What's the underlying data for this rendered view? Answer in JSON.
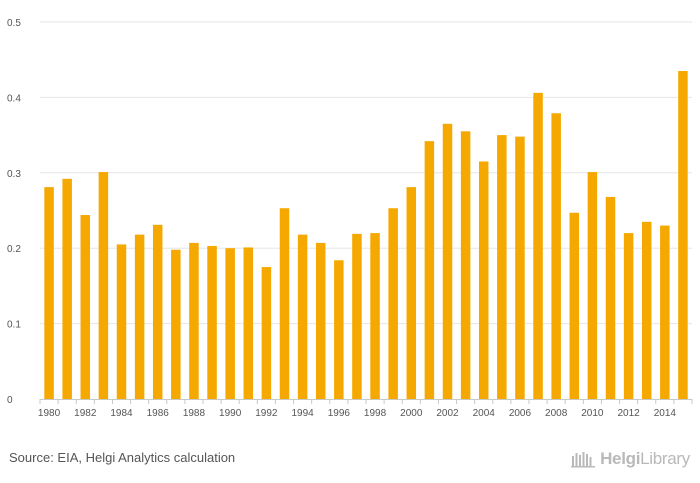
{
  "chart_data": {
    "type": "bar",
    "title": "",
    "xlabel": "",
    "ylabel": "",
    "ylim": [
      0,
      0.5
    ],
    "yticks": [
      0,
      0.1,
      0.2,
      0.3,
      0.4,
      0.5
    ],
    "ytick_labels": [
      "0",
      "0.1",
      "0.2",
      "0.3",
      "0.4",
      "0.5"
    ],
    "categories": [
      "1980",
      "1981",
      "1982",
      "1983",
      "1984",
      "1985",
      "1986",
      "1987",
      "1988",
      "1989",
      "1990",
      "1991",
      "1992",
      "1993",
      "1994",
      "1995",
      "1996",
      "1997",
      "1998",
      "1999",
      "2000",
      "2001",
      "2002",
      "2003",
      "2004",
      "2005",
      "2006",
      "2007",
      "2008",
      "2009",
      "2010",
      "2011",
      "2012",
      "2013",
      "2014",
      "2015"
    ],
    "xtick_labels": [
      "1980",
      "1982",
      "1984",
      "1986",
      "1988",
      "1990",
      "1992",
      "1994",
      "1996",
      "1998",
      "2000",
      "2002",
      "2004",
      "2006",
      "2008",
      "2010",
      "2012",
      "2014"
    ],
    "values": [
      0.281,
      0.292,
      0.244,
      0.301,
      0.205,
      0.218,
      0.231,
      0.198,
      0.207,
      0.203,
      0.2,
      0.201,
      0.175,
      0.253,
      0.218,
      0.207,
      0.184,
      0.219,
      0.22,
      0.253,
      0.281,
      0.342,
      0.365,
      0.355,
      0.315,
      0.35,
      0.348,
      0.406,
      0.379,
      0.247,
      0.301,
      0.268,
      0.22,
      0.235,
      0.23,
      0.435
    ],
    "bar_color": "#f5a800",
    "grid": true
  },
  "footer": {
    "source": "Source: EIA, Helgi Analytics calculation",
    "brand_name_a": "Helgi",
    "brand_name_b": "Library"
  },
  "colors": {
    "grid": "#e6e6e6",
    "axis_text": "#555555",
    "brand": "#b9b9b9"
  },
  "icons": {
    "brand_logo": "helgi-library-logo-icon"
  }
}
